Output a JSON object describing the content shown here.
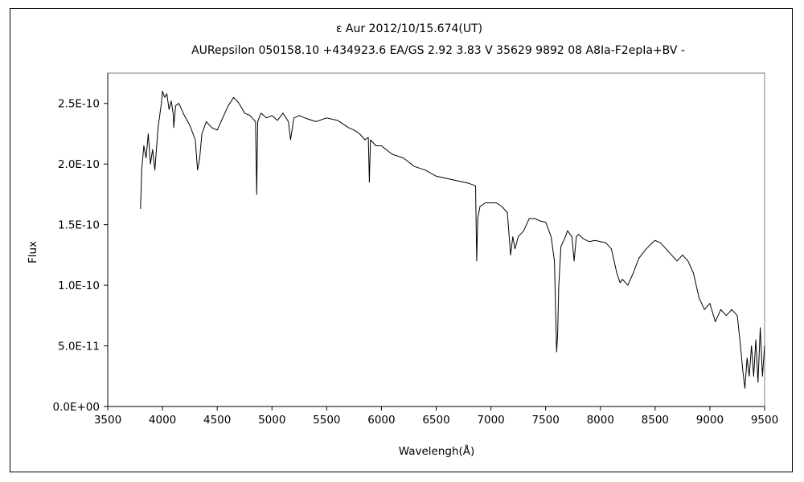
{
  "chart_data": {
    "type": "line",
    "title": "ε  Aur    2012/10/15.674(UT)",
    "subtitle": "AURepsilon 050158.10 +434923.6 EA/GS 2.92 3.83 V 35629 9892 08 A8Ia-F2epIa+BV -",
    "xlabel": "Wavelengh(Å)",
    "ylabel": "Flux",
    "xlim": [
      3500,
      9500
    ],
    "ylim": [
      0,
      2.75e-10
    ],
    "x_ticks": [
      3500,
      4000,
      4500,
      5000,
      5500,
      6000,
      6500,
      7000,
      7500,
      8000,
      8500,
      9000,
      9500
    ],
    "x_tick_labels": [
      "3500",
      "4000",
      "4500",
      "5000",
      "5500",
      "6000",
      "6500",
      "7000",
      "7500",
      "8000",
      "8500",
      "9000",
      "9500"
    ],
    "y_ticks": [
      0,
      5e-11,
      1e-10,
      1.5e-10,
      2e-10,
      2.5e-10
    ],
    "y_tick_labels": [
      "0.0E+00",
      "5.0E-11",
      "1.0E-10",
      "1.5E-10",
      "2.0E-10",
      "2.5E-10"
    ],
    "grid": false,
    "series": [
      {
        "color": "#000000",
        "x": [
          3800,
          3810,
          3830,
          3850,
          3870,
          3890,
          3910,
          3930,
          3960,
          3990,
          4000,
          4020,
          4040,
          4060,
          4080,
          4100,
          4102,
          4120,
          4150,
          4200,
          4250,
          4300,
          4320,
          4340,
          4360,
          4400,
          4450,
          4500,
          4550,
          4600,
          4650,
          4700,
          4750,
          4800,
          4850,
          4861,
          4870,
          4900,
          4950,
          5000,
          5050,
          5100,
          5150,
          5170,
          5200,
          5250,
          5300,
          5400,
          5500,
          5600,
          5700,
          5750,
          5800,
          5850,
          5880,
          5890,
          5900,
          5950,
          6000,
          6100,
          6200,
          6300,
          6400,
          6500,
          6600,
          6700,
          6800,
          6860,
          6870,
          6880,
          6900,
          6950,
          7000,
          7050,
          7100,
          7150,
          7180,
          7200,
          7220,
          7250,
          7300,
          7350,
          7400,
          7450,
          7500,
          7550,
          7580,
          7600,
          7610,
          7620,
          7640,
          7680,
          7700,
          7740,
          7760,
          7780,
          7800,
          7850,
          7900,
          7950,
          8000,
          8050,
          8100,
          8150,
          8180,
          8200,
          8250,
          8300,
          8350,
          8400,
          8450,
          8500,
          8550,
          8600,
          8650,
          8700,
          8750,
          8800,
          8850,
          8900,
          8950,
          9000,
          9050,
          9100,
          9150,
          9200,
          9250,
          9280,
          9300,
          9320,
          9340,
          9360,
          9380,
          9400,
          9420,
          9440,
          9460,
          9480,
          9500
        ],
        "y": [
          1.63e-10,
          1.95e-10,
          2.15e-10,
          2.05e-10,
          2.25e-10,
          2e-10,
          2.12e-10,
          1.95e-10,
          2.3e-10,
          2.5e-10,
          2.6e-10,
          2.55e-10,
          2.58e-10,
          2.45e-10,
          2.52e-10,
          2.4e-10,
          2.3e-10,
          2.48e-10,
          2.5e-10,
          2.4e-10,
          2.32e-10,
          2.2e-10,
          1.95e-10,
          2.05e-10,
          2.25e-10,
          2.35e-10,
          2.3e-10,
          2.28e-10,
          2.38e-10,
          2.48e-10,
          2.55e-10,
          2.5e-10,
          2.42e-10,
          2.4e-10,
          2.35e-10,
          1.75e-10,
          2.35e-10,
          2.42e-10,
          2.38e-10,
          2.4e-10,
          2.36e-10,
          2.42e-10,
          2.35e-10,
          2.2e-10,
          2.38e-10,
          2.4e-10,
          2.38e-10,
          2.35e-10,
          2.38e-10,
          2.36e-10,
          2.3e-10,
          2.28e-10,
          2.25e-10,
          2.2e-10,
          2.22e-10,
          1.85e-10,
          2.2e-10,
          2.15e-10,
          2.15e-10,
          2.08e-10,
          2.05e-10,
          1.98e-10,
          1.95e-10,
          1.9e-10,
          1.88e-10,
          1.86e-10,
          1.84e-10,
          1.82e-10,
          1.2e-10,
          1.55e-10,
          1.65e-10,
          1.68e-10,
          1.68e-10,
          1.68e-10,
          1.65e-10,
          1.6e-10,
          1.25e-10,
          1.4e-10,
          1.3e-10,
          1.4e-10,
          1.45e-10,
          1.55e-10,
          1.55e-10,
          1.53e-10,
          1.52e-10,
          1.4e-10,
          1.2e-10,
          4.5e-11,
          6e-11,
          1e-10,
          1.32e-10,
          1.4e-10,
          1.45e-10,
          1.4e-10,
          1.2e-10,
          1.4e-10,
          1.42e-10,
          1.38e-10,
          1.36e-10,
          1.37e-10,
          1.36e-10,
          1.35e-10,
          1.3e-10,
          1.1e-10,
          1.02e-10,
          1.05e-10,
          1e-10,
          1.1e-10,
          1.22e-10,
          1.28e-10,
          1.33e-10,
          1.37e-10,
          1.35e-10,
          1.3e-10,
          1.25e-10,
          1.2e-10,
          1.25e-10,
          1.2e-10,
          1.1e-10,
          9e-11,
          8e-11,
          8.5e-11,
          7e-11,
          8e-11,
          7.5e-11,
          8e-11,
          7.5e-11,
          5e-11,
          3e-11,
          1.5e-11,
          4e-11,
          2.5e-11,
          5e-11,
          2.5e-11,
          5.5e-11,
          2e-11,
          6.5e-11,
          2.5e-11,
          5e-11
        ]
      }
    ]
  }
}
